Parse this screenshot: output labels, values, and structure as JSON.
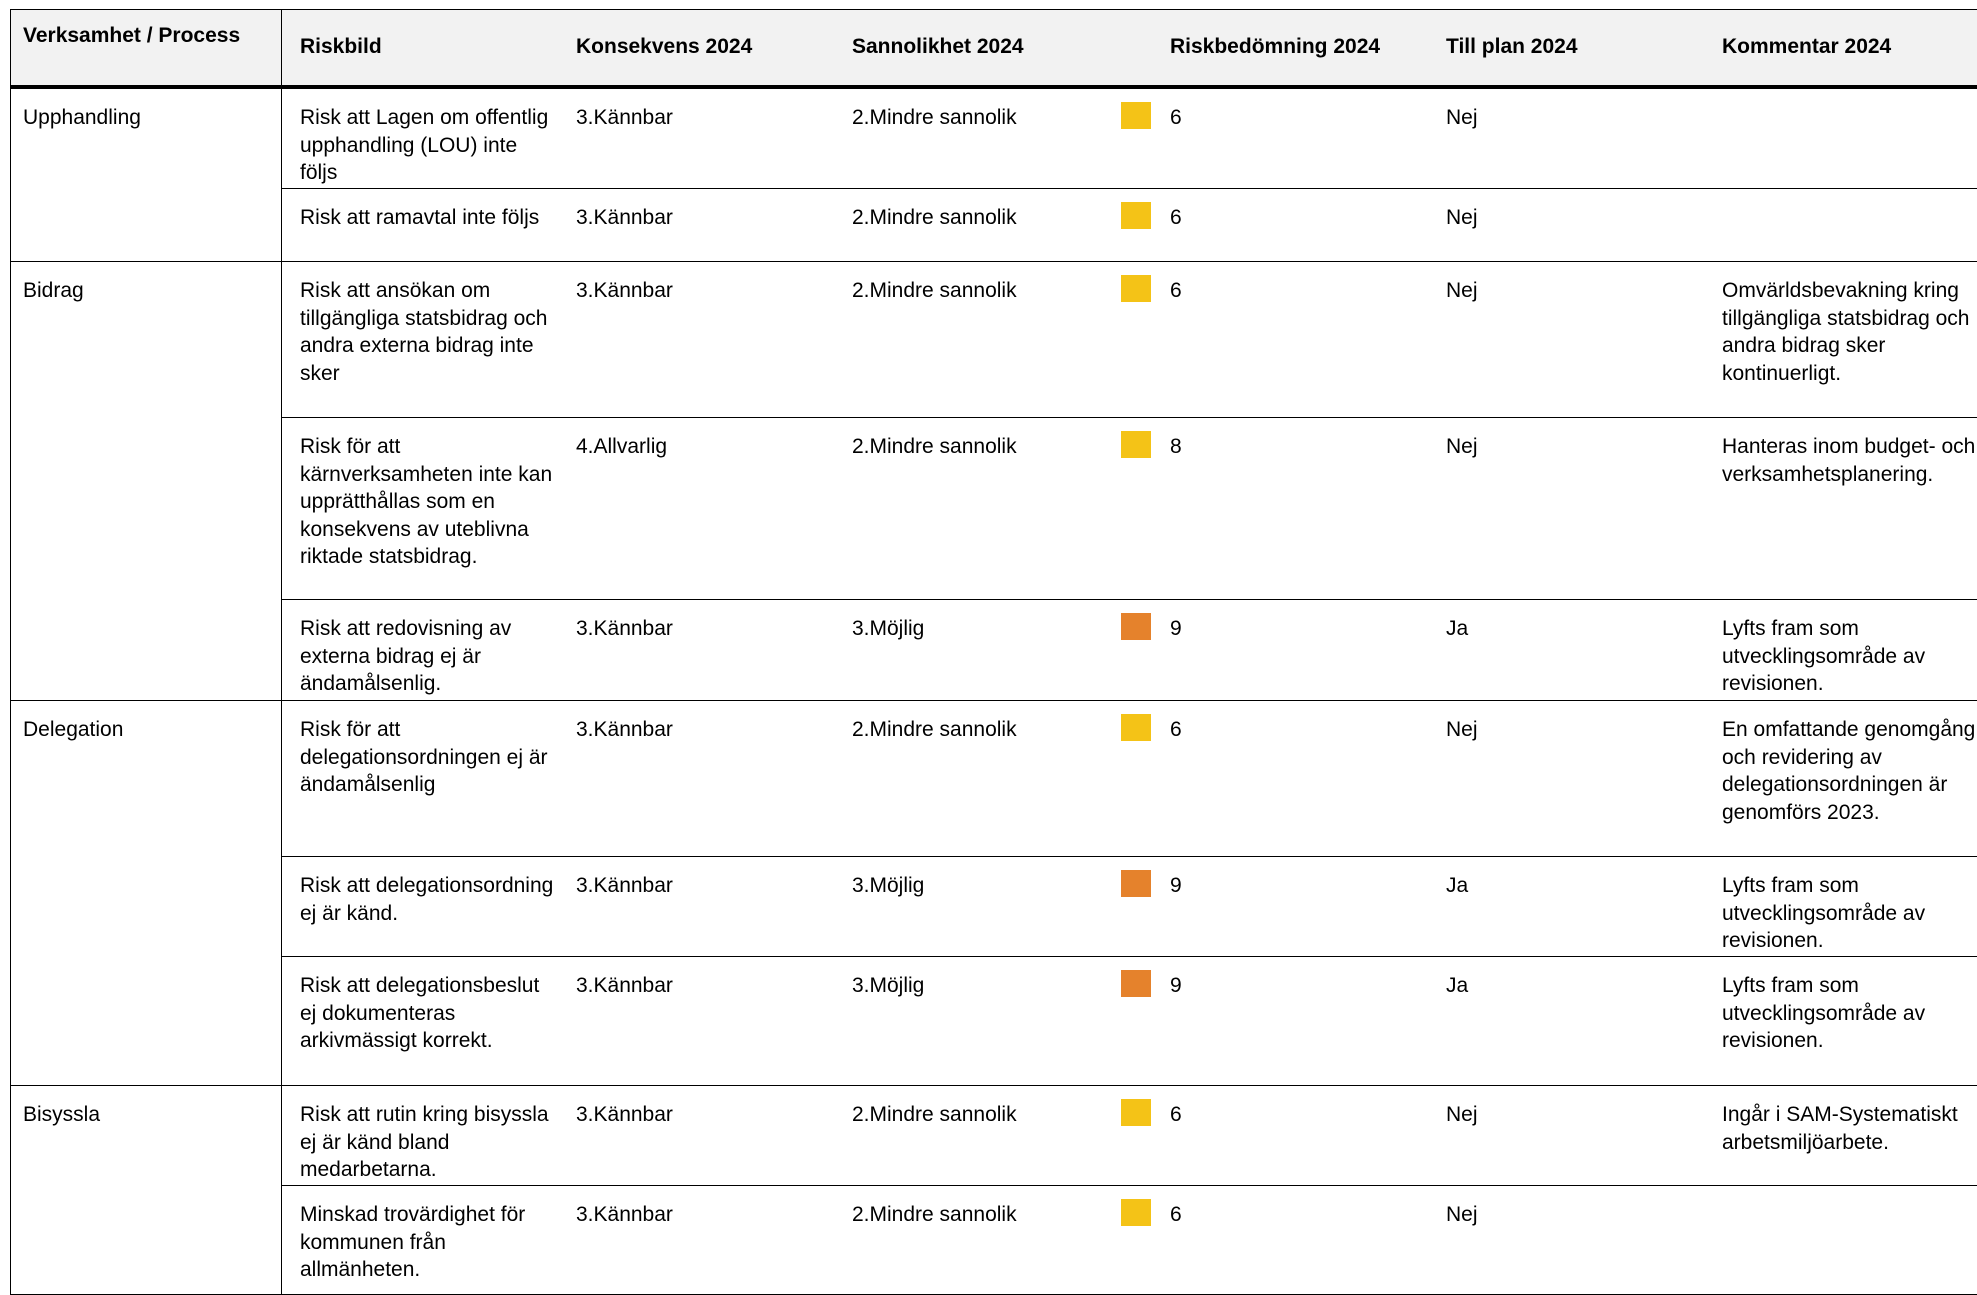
{
  "header": {
    "verksamhet": "Verksamhet / Process",
    "riskbild": "Riskbild",
    "konsekvens": "Konsekvens 2024",
    "sannolikhet": "Sannolikhet 2024",
    "riskbedomning": "Riskbedömning 2024",
    "till_plan": "Till plan 2024",
    "kommentar": "Kommentar 2024"
  },
  "colors": {
    "yellow": "#f4c317",
    "orange": "#e5822c"
  },
  "groups": [
    {
      "name": "Upphandling",
      "rows": [
        {
          "riskbild": "Risk att Lagen om offentlig upphandling (LOU) inte följs",
          "konsekvens": "3.Kännbar",
          "sannolikhet": "2.Mindre sannolik",
          "level": "yellow",
          "riskbedomning": "6",
          "till_plan": "Nej",
          "kommentar": ""
        },
        {
          "riskbild": "Risk att ramavtal inte följs",
          "konsekvens": "3.Kännbar",
          "sannolikhet": "2.Mindre sannolik",
          "level": "yellow",
          "riskbedomning": "6",
          "till_plan": "Nej",
          "kommentar": ""
        }
      ]
    },
    {
      "name": "Bidrag",
      "rows": [
        {
          "riskbild": "Risk att ansökan om tillgängliga statsbidrag och andra externa bidrag inte sker",
          "konsekvens": "3.Kännbar",
          "sannolikhet": "2.Mindre sannolik",
          "level": "yellow",
          "riskbedomning": "6",
          "till_plan": "Nej",
          "kommentar": "Omvärldsbevakning kring tillgängliga statsbidrag och andra bidrag sker kontinuerligt."
        },
        {
          "riskbild": "Risk för att kärnverksamheten inte kan upprätthållas som en konsekvens av uteblivna riktade statsbidrag.",
          "konsekvens": "4.Allvarlig",
          "sannolikhet": "2.Mindre sannolik",
          "level": "yellow",
          "riskbedomning": "8",
          "till_plan": "Nej",
          "kommentar": "Hanteras inom budget- och verksamhetsplanering."
        },
        {
          "riskbild": "Risk att redovisning av externa bidrag ej är ändamålsenlig.",
          "konsekvens": "3.Kännbar",
          "sannolikhet": "3.Möjlig",
          "level": "orange",
          "riskbedomning": "9",
          "till_plan": "Ja",
          "kommentar": "Lyfts fram som utvecklingsområde av revisionen."
        }
      ]
    },
    {
      "name": "Delegation",
      "rows": [
        {
          "riskbild": "Risk för att delegationsordningen ej är ändamålsenlig",
          "konsekvens": "3.Kännbar",
          "sannolikhet": "2.Mindre sannolik",
          "level": "yellow",
          "riskbedomning": "6",
          "till_plan": "Nej",
          "kommentar": "En omfattande genomgång och revidering av delegationsordningen är genomförs 2023."
        },
        {
          "riskbild": "Risk att delegationsordning ej är känd.",
          "konsekvens": "3.Kännbar",
          "sannolikhet": "3.Möjlig",
          "level": "orange",
          "riskbedomning": "9",
          "till_plan": "Ja",
          "kommentar": "Lyfts fram som utvecklingsområde av revisionen."
        },
        {
          "riskbild": "Risk att delegationsbeslut ej dokumenteras arkivmässigt korrekt.",
          "konsekvens": "3.Kännbar",
          "sannolikhet": "3.Möjlig",
          "level": "orange",
          "riskbedomning": "9",
          "till_plan": "Ja",
          "kommentar": "Lyfts fram som utvecklingsområde av revisionen."
        }
      ]
    },
    {
      "name": "Bisyssla",
      "rows": [
        {
          "riskbild": "Risk att rutin kring bisyssla ej är känd bland medarbetarna.",
          "konsekvens": "3.Kännbar",
          "sannolikhet": "2.Mindre sannolik",
          "level": "yellow",
          "riskbedomning": "6",
          "till_plan": "Nej",
          "kommentar": "Ingår i SAM-Systematiskt arbetsmiljöarbete."
        },
        {
          "riskbild": "Minskad trovärdighet för kommunen från allmänheten.",
          "konsekvens": "3.Kännbar",
          "sannolikhet": "2.Mindre sannolik",
          "level": "yellow",
          "riskbedomning": "6",
          "till_plan": "Nej",
          "kommentar": ""
        }
      ]
    }
  ]
}
